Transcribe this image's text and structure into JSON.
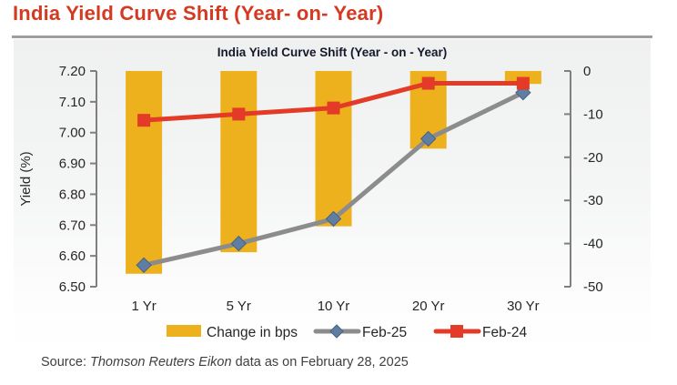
{
  "page": {
    "main_title": "India Yield Curve Shift (Year- on- Year)",
    "title_color": "#d43a21",
    "source": {
      "prefix": "Source: ",
      "name": "Thomson Reuters Eikon",
      "suffix": " data as on February 28, 2025"
    }
  },
  "chart_data": {
    "type": "bar",
    "subtype": "combo-bar-line-dual-axis",
    "title": "India Yield Curve Shift (Year - on - Year)",
    "categories": [
      "1 Yr",
      "5 Yr",
      "10 Yr",
      "20 Yr",
      "30 Yr"
    ],
    "series": [
      {
        "name": "Change in bps",
        "type": "bar",
        "axis": "right",
        "color": "#edb11d",
        "values": [
          -47,
          -42,
          -36,
          -18,
          -3
        ]
      },
      {
        "name": "Feb-25",
        "type": "line",
        "axis": "left",
        "color": "#8c8c8c",
        "marker": "diamond",
        "marker_color": "#5e7fa3",
        "marker_edge_color": "#47617e",
        "values": [
          6.57,
          6.64,
          6.72,
          6.98,
          7.13
        ]
      },
      {
        "name": "Feb-24",
        "type": "line",
        "axis": "left",
        "color": "#e33b27",
        "marker": "square",
        "marker_color": "#e33b27",
        "values": [
          7.04,
          7.06,
          7.08,
          7.16,
          7.16
        ]
      }
    ],
    "left_axis": {
      "label": "Yield (%)",
      "min": 6.5,
      "max": 7.2,
      "step": 0.1,
      "ticks": [
        "7.20",
        "7.10",
        "7.00",
        "6.90",
        "6.80",
        "6.70",
        "6.60",
        "6.50"
      ]
    },
    "right_axis": {
      "min": -50,
      "max": 0,
      "step": 10,
      "ticks": [
        "0",
        "-10",
        "-20",
        "-30",
        "-40",
        "-50"
      ]
    },
    "legend_position": "bottom",
    "grid": false,
    "axis_color": "#7f7f7f",
    "tick_label_color": "#262626"
  }
}
